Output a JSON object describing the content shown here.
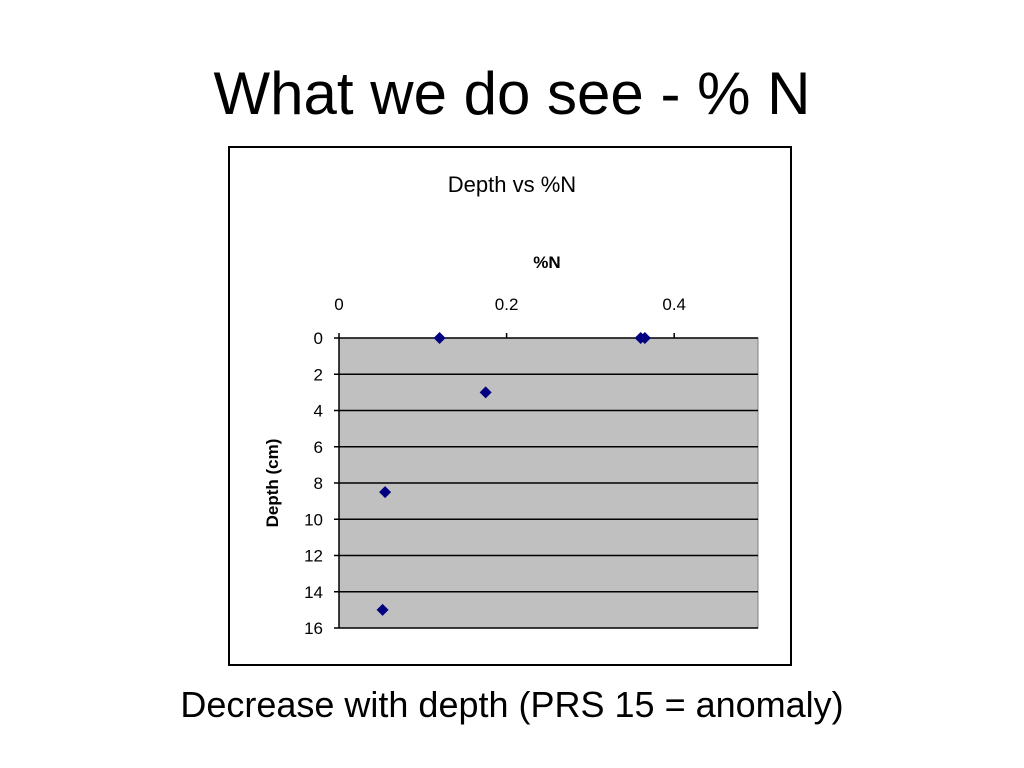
{
  "slide": {
    "title": "What we do see - % N",
    "caption": "Decrease with depth (PRS 15 = anomaly)"
  },
  "colors": {
    "plot_background": "#C0C0C0",
    "marker": "#000080",
    "gridline": "#000000"
  },
  "chart_data": {
    "type": "scatter",
    "title": "Depth vs %N",
    "xlabel": "%N",
    "ylabel": "Depth (cm)",
    "xlim": [
      0,
      0.5
    ],
    "ylim": [
      0,
      16
    ],
    "y_inverted": true,
    "x_axis_position": "top",
    "xticks": [
      "0",
      "0.2",
      "0.4"
    ],
    "xtick_values": [
      0,
      0.2,
      0.4
    ],
    "yticks": [
      "0",
      "2",
      "4",
      "6",
      "8",
      "10",
      "12",
      "14",
      "16"
    ],
    "ytick_values": [
      0,
      2,
      4,
      6,
      8,
      10,
      12,
      14,
      16
    ],
    "grid": "horizontal",
    "legend": "none",
    "points": [
      {
        "x": 0.12,
        "y": 0
      },
      {
        "x": 0.36,
        "y": 0
      },
      {
        "x": 0.365,
        "y": 0
      },
      {
        "x": 0.175,
        "y": 3
      },
      {
        "x": 0.055,
        "y": 8.5
      },
      {
        "x": 0.052,
        "y": 15
      }
    ]
  }
}
